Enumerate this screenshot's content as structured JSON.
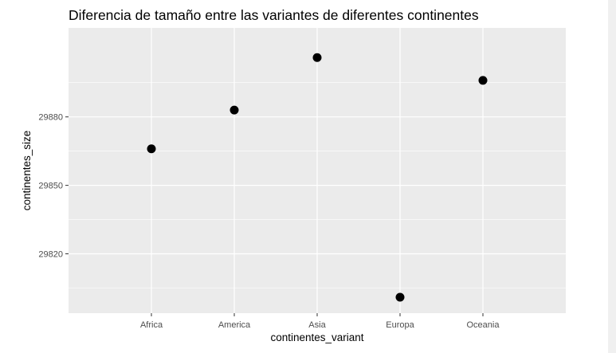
{
  "chart_data": {
    "type": "scatter",
    "title": "Diferencia de tamaño entre las variantes de diferentes continentes",
    "xlabel": "continentes_variant",
    "ylabel": "continentes_size",
    "categories": [
      "Africa",
      "America",
      "Asia",
      "Europa",
      "Oceania"
    ],
    "values": [
      29866,
      29883,
      29906,
      29801,
      29896
    ],
    "ylim": [
      29794,
      29919
    ],
    "yticks": [
      29820,
      29850,
      29880
    ],
    "yminor": [
      29805,
      29835,
      29865,
      29895
    ],
    "grid": true,
    "legend": "none",
    "colors": {
      "panel": "#ebebeb",
      "grid": "#ffffff",
      "point": "#000000"
    }
  }
}
